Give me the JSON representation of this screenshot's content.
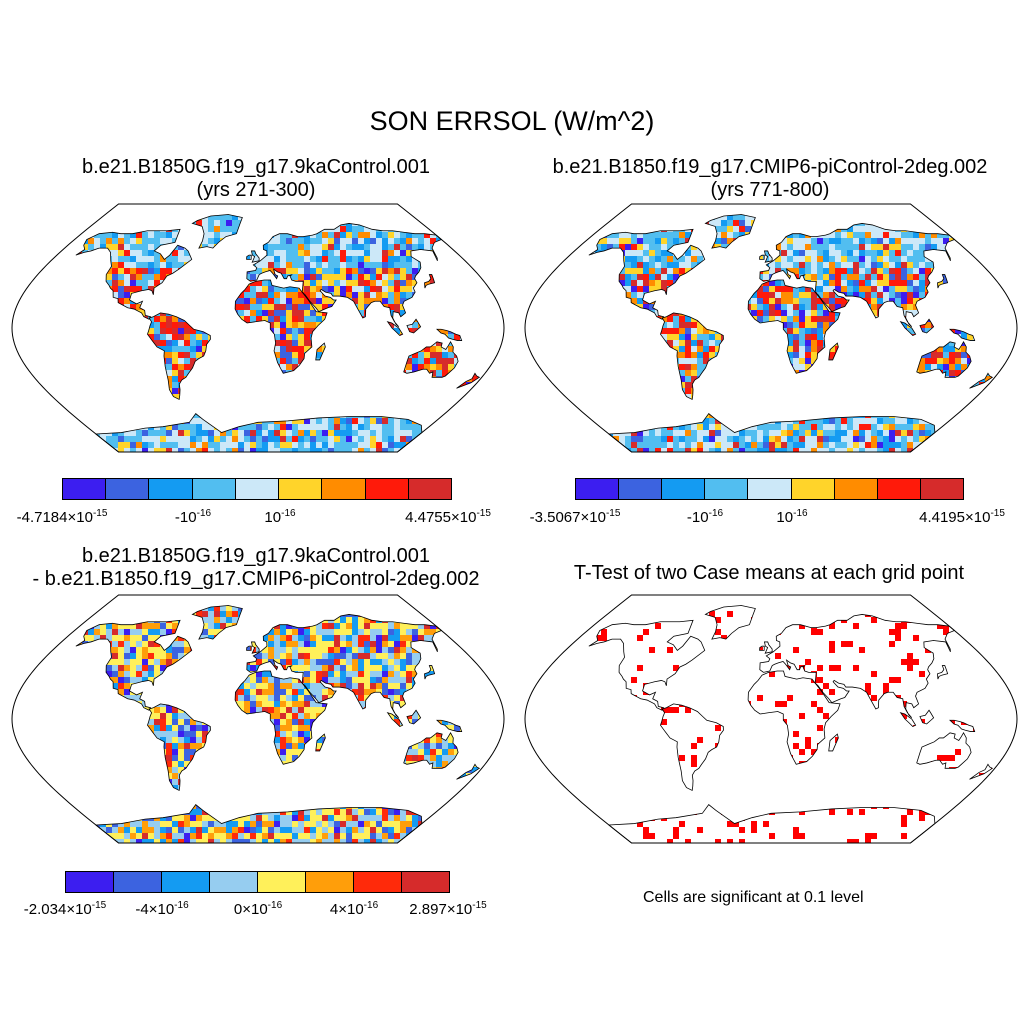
{
  "title": "SON ERRSOL (W/m^2)",
  "panels": [
    {
      "id": "p1",
      "title_line1": "b.e21.B1850G.f19_g17.9kaControl.001",
      "title_line2": "(yrs 271-300)",
      "palette": [
        "#3c1ef0",
        "#3c63e0",
        "#149bf2",
        "#52bef0",
        "#cce8f8",
        "#ffd42a",
        "#ff8c00",
        "#ff1a0a",
        "#d62b2b"
      ],
      "labels": [
        "-4.7184×10",
        "-10",
        "10",
        "4.4755×10"
      ],
      "label_exps": [
        "-15",
        "-16",
        "-16",
        "-15"
      ]
    },
    {
      "id": "p2",
      "title_line1": "b.e21.B1850.f19_g17.CMIP6-piControl-2deg.002",
      "title_line2": "(yrs 771-800)",
      "palette": [
        "#3c1ef0",
        "#3c63e0",
        "#149bf2",
        "#52bef0",
        "#cce8f8",
        "#ffd42a",
        "#ff8c00",
        "#ff1a0a",
        "#d62b2b"
      ],
      "labels": [
        "-3.5067×10",
        "-10",
        "10",
        "4.4195×10"
      ],
      "label_exps": [
        "-15",
        "-16",
        "-16",
        "-15"
      ]
    },
    {
      "id": "p3",
      "title_line1": "b.e21.B1850G.f19_g17.9kaControl.001",
      "title_line2": "- b.e21.B1850.f19_g17.CMIP6-piControl-2deg.002",
      "palette": [
        "#3c1ef0",
        "#3c63e0",
        "#149bf2",
        "#96cdf0",
        "#fff05a",
        "#ff9e0a",
        "#ff2a0a",
        "#d62b2b"
      ],
      "labels": [
        "-2.034×10",
        "-4×10",
        "0×10",
        "4×10",
        "2.897×10"
      ],
      "label_exps": [
        "-15",
        "-16",
        "-16",
        "-16",
        "-15"
      ]
    },
    {
      "id": "p4",
      "title_line1": "T-Test of two Case means at each grid point",
      "note": "Cells are significant at 0.1 level",
      "palette": [
        "#ff0000"
      ]
    }
  ]
}
